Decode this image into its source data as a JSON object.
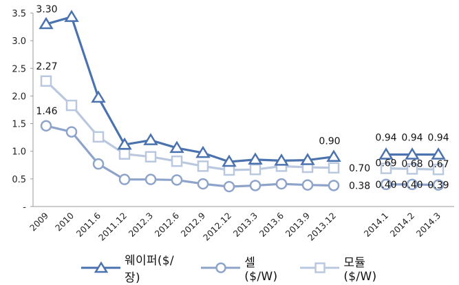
{
  "chart_data": {
    "type": "line",
    "categories": [
      "2009",
      "2010",
      "2011.6",
      "2011.12",
      "2012.3",
      "2012.6",
      "2012.9",
      "2012.12",
      "2013.3",
      "2013.6",
      "2013.9",
      "2013.12",
      "2014.1",
      "2014.2",
      "2014.3"
    ],
    "ylim": [
      0,
      3.5
    ],
    "yticks": [
      "-",
      "0.5",
      "1.0",
      "1.5",
      "2.0",
      "2.5",
      "3.0",
      "3.5"
    ],
    "grid": false,
    "legend_position": "bottom",
    "series": [
      {
        "name": "웨이퍼($/장)",
        "color": "#4A72AE",
        "marker": "triangle",
        "values": [
          3.3,
          3.43,
          1.97,
          1.12,
          1.2,
          1.06,
          0.97,
          0.81,
          0.85,
          0.83,
          0.84,
          0.9,
          0.94,
          0.94,
          0.94
        ]
      },
      {
        "name": "모듈($/W)",
        "color": "#B9C8DF",
        "marker": "square",
        "values": [
          2.27,
          1.83,
          1.26,
          0.95,
          0.9,
          0.82,
          0.73,
          0.66,
          0.67,
          0.73,
          0.71,
          0.7,
          0.69,
          0.68,
          0.67
        ]
      },
      {
        "name": "셀($/W)",
        "color": "#8DA3CA",
        "marker": "circle",
        "values": [
          1.46,
          1.35,
          0.77,
          0.49,
          0.49,
          0.48,
          0.41,
          0.36,
          0.38,
          0.41,
          0.39,
          0.38,
          0.4,
          0.4,
          0.39
        ]
      }
    ],
    "data_labels": [
      {
        "text": "3.30",
        "series": 0,
        "index": 0
      },
      {
        "text": "2.27",
        "series": 1,
        "index": 0
      },
      {
        "text": "1.46",
        "series": 2,
        "index": 0
      },
      {
        "text": "0.90",
        "series": 0,
        "index": 11
      },
      {
        "text": "0.70",
        "series": 1,
        "index": 11
      },
      {
        "text": "0.38",
        "series": 2,
        "index": 11
      },
      {
        "text": "0.94",
        "series": 0,
        "index": 12
      },
      {
        "text": "0.94",
        "series": 0,
        "index": 13
      },
      {
        "text": "0.94",
        "series": 0,
        "index": 14
      },
      {
        "text": "0.69",
        "series": 1,
        "index": 12
      },
      {
        "text": "0.68",
        "series": 1,
        "index": 13
      },
      {
        "text": "0.67",
        "series": 1,
        "index": 14
      },
      {
        "text": "0.40",
        "series": 2,
        "index": 12
      },
      {
        "text": "0.40",
        "series": 2,
        "index": 13
      },
      {
        "text": "0.39",
        "series": 2,
        "index": 14
      }
    ]
  },
  "legend": {
    "items": [
      {
        "label": "웨이퍼($/장)",
        "color": "#4A72AE",
        "marker": "triangle"
      },
      {
        "label": "셀($/W)",
        "color": "#8DA3CA",
        "marker": "circle"
      },
      {
        "label": "모듈($/W)",
        "color": "#B9C8DF",
        "marker": "square"
      }
    ]
  }
}
